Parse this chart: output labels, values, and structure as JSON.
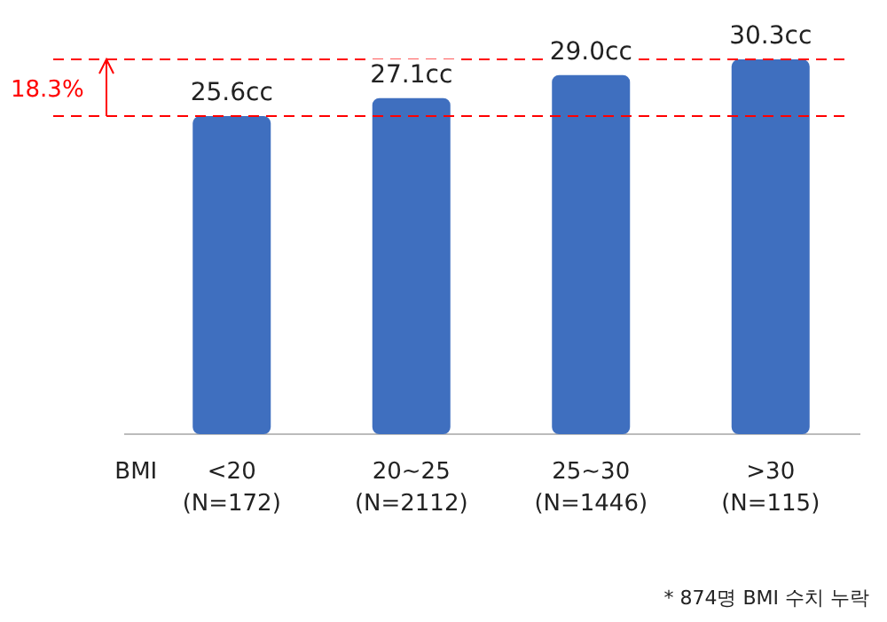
{
  "chart_data": {
    "type": "bar",
    "xlabel": "BMI",
    "categories": [
      "<20\n(N=172)",
      "20~25\n(N=2112)",
      "25~30\n(N=1446)",
      ">30\n(N=115)"
    ],
    "values": [
      25.6,
      27.1,
      29.0,
      30.3
    ],
    "value_labels": [
      "25.6cc",
      "27.1cc",
      "29.0cc",
      "30.3cc"
    ],
    "color": "#3f6fbf",
    "tick_labels": "x",
    "ref_lines": [
      {
        "axis": "y",
        "value": 25.6,
        "color": "#ff0000",
        "line_style": "dashed"
      },
      {
        "axis": "y",
        "value": 30.3,
        "color": "#ff0000",
        "line_style": "dashed"
      }
    ],
    "annotations": [
      "18.3%",
      "* 874명 BMI 수치 누락"
    ]
  }
}
